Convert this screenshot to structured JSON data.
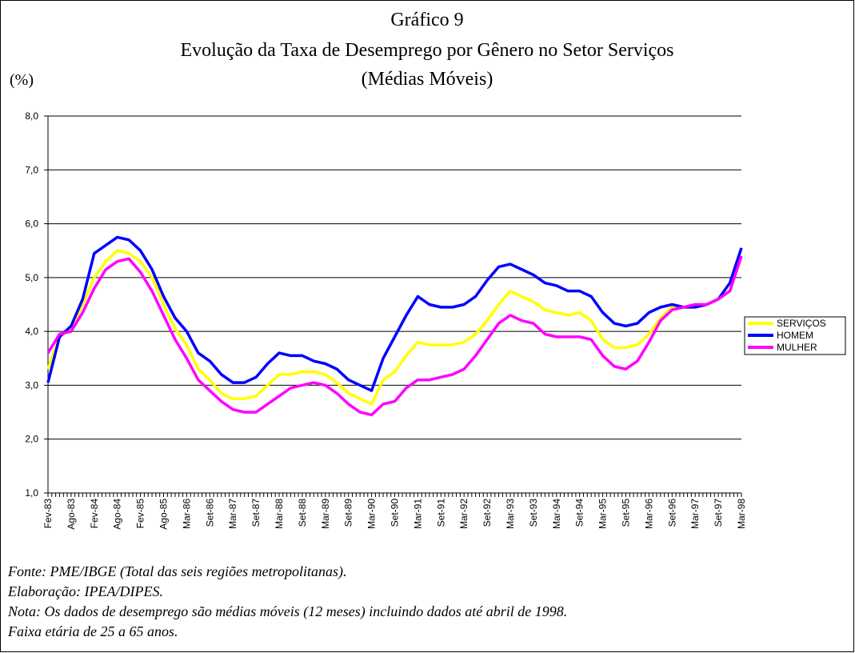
{
  "chart_data": {
    "type": "line",
    "title": "Gráfico 9",
    "subtitle": "Evolução da Taxa de Desemprego por Gênero no Setor Serviços",
    "subtitle2": "(Médias Móveis)",
    "y_label": "(%)",
    "notes": [
      "Fonte: PME/IBGE (Total das seis regiões metropolitanas).",
      "Elaboração: IPEA/DIPES.",
      "Nota: Os dados de desemprego são médias móveis (12 meses) incluindo dados até abril de 1998.",
      "Faixa etária de 25 a 65 anos."
    ],
    "categories": [
      "Fev-83",
      null,
      "Ago-83",
      null,
      "Fev-84",
      null,
      "Ago-84",
      null,
      "Fev-85",
      null,
      "Ago-85",
      null,
      "Mar-86",
      null,
      "Set-86",
      null,
      "Mar-87",
      null,
      "Set-87",
      null,
      "Mar-88",
      null,
      "Set-88",
      null,
      "Mar-89",
      null,
      "Set-89",
      null,
      "Mar-90",
      null,
      "Set-90",
      null,
      "Mar-91",
      null,
      "Set-91",
      null,
      "Mar-92",
      null,
      "Set-92",
      null,
      "Mar-93",
      null,
      "Set-93",
      null,
      "Mar-94",
      null,
      "Set-94",
      null,
      "Mar-95",
      null,
      "Set-95",
      null,
      "Mar-96",
      null,
      "Set-96",
      null,
      "Mar-97",
      null,
      "Set-97",
      null,
      "Mar-98"
    ],
    "series": [
      {
        "name": "SERVIÇOS",
        "color": "#ffff00",
        "values": [
          3.3,
          3.9,
          4.05,
          4.5,
          5.0,
          5.3,
          5.5,
          5.45,
          5.3,
          5.0,
          4.5,
          4.05,
          3.75,
          3.3,
          3.1,
          2.85,
          2.75,
          2.75,
          2.8,
          3.0,
          3.2,
          3.2,
          3.25,
          3.25,
          3.2,
          3.05,
          2.85,
          2.75,
          2.65,
          3.1,
          3.25,
          3.55,
          3.8,
          3.75,
          3.75,
          3.75,
          3.8,
          3.95,
          4.2,
          4.5,
          4.75,
          4.65,
          4.55,
          4.4,
          4.35,
          4.3,
          4.35,
          4.2,
          3.85,
          3.7,
          3.7,
          3.75,
          3.95,
          4.25,
          4.45,
          4.45,
          4.45,
          4.5,
          4.6,
          4.75,
          5.4
        ]
      },
      {
        "name": "HOMEM",
        "color": "#0000ff",
        "values": [
          3.05,
          3.9,
          4.1,
          4.6,
          5.45,
          5.6,
          5.75,
          5.7,
          5.5,
          5.15,
          4.65,
          4.25,
          4.0,
          3.6,
          3.45,
          3.2,
          3.05,
          3.05,
          3.15,
          3.4,
          3.6,
          3.55,
          3.55,
          3.45,
          3.4,
          3.3,
          3.1,
          3.0,
          2.9,
          3.5,
          3.9,
          4.3,
          4.65,
          4.5,
          4.45,
          4.45,
          4.5,
          4.65,
          4.95,
          5.2,
          5.25,
          5.15,
          5.05,
          4.9,
          4.85,
          4.75,
          4.75,
          4.65,
          4.35,
          4.15,
          4.1,
          4.15,
          4.35,
          4.45,
          4.5,
          4.45,
          4.45,
          4.5,
          4.6,
          4.9,
          5.55
        ]
      },
      {
        "name": "MULHER",
        "color": "#ff00ff",
        "values": [
          3.6,
          3.95,
          4.0,
          4.35,
          4.8,
          5.15,
          5.3,
          5.35,
          5.1,
          4.75,
          4.3,
          3.85,
          3.5,
          3.1,
          2.9,
          2.7,
          2.55,
          2.5,
          2.5,
          2.65,
          2.8,
          2.95,
          3.0,
          3.05,
          3.0,
          2.85,
          2.65,
          2.5,
          2.45,
          2.65,
          2.7,
          2.95,
          3.1,
          3.1,
          3.15,
          3.2,
          3.3,
          3.55,
          3.85,
          4.15,
          4.3,
          4.2,
          4.15,
          3.95,
          3.9,
          3.9,
          3.9,
          3.85,
          3.55,
          3.35,
          3.3,
          3.45,
          3.8,
          4.2,
          4.4,
          4.45,
          4.5,
          4.5,
          4.6,
          4.75,
          5.4
        ]
      }
    ],
    "ylim": [
      1,
      8
    ],
    "yticks": [
      {
        "value": 1,
        "label": "1,0"
      },
      {
        "value": 2,
        "label": "2,0"
      },
      {
        "value": 3,
        "label": "3,0"
      },
      {
        "value": 4,
        "label": "4,0"
      },
      {
        "value": 5,
        "label": "5,0"
      },
      {
        "value": 6,
        "label": "6,0"
      },
      {
        "value": 7,
        "label": "7,0"
      },
      {
        "value": 8,
        "label": "8,0"
      }
    ],
    "grid": true,
    "legend": "right"
  }
}
